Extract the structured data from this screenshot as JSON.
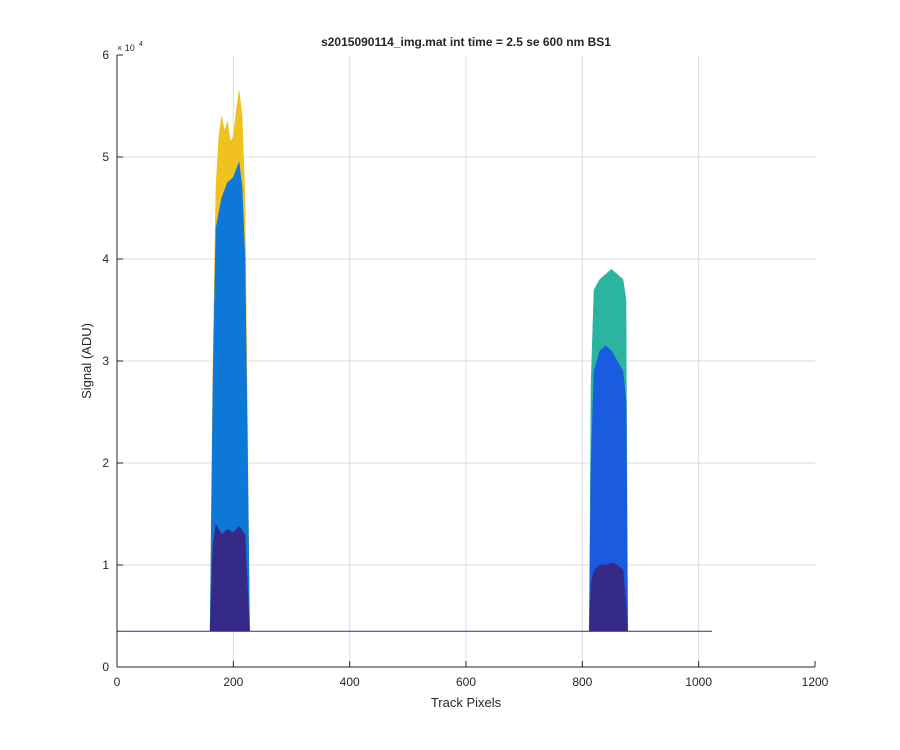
{
  "chart_data": {
    "type": "area",
    "title": "s2015090114_img.mat int time = 2.5 se  600 nm BS1",
    "xlabel": "Track Pixels",
    "ylabel": "Signal (ADU)",
    "xlim": [
      0,
      1200
    ],
    "ylim": [
      0,
      60000
    ],
    "xticks": [
      0,
      200,
      400,
      600,
      800,
      1000,
      1200
    ],
    "xtick_labels": [
      "0",
      "200",
      "400",
      "600",
      "800",
      "1000",
      "1200"
    ],
    "yticks": [
      0,
      10000,
      20000,
      30000,
      40000,
      50000,
      60000
    ],
    "ytick_labels": [
      "0",
      "1",
      "2",
      "3",
      "4",
      "5",
      "6"
    ],
    "y_exponent_label": "× 10",
    "y_exponent_power": "4",
    "grid": true,
    "baseline": 3500,
    "baseline_x_range": [
      0,
      1023
    ],
    "series": [
      {
        "color": "#F0C21E",
        "values": [
          [
            160,
            3500
          ],
          [
            165,
            30000
          ],
          [
            170,
            47000
          ],
          [
            175,
            52000
          ],
          [
            180,
            54000
          ],
          [
            185,
            52500
          ],
          [
            190,
            53500
          ],
          [
            195,
            51500
          ],
          [
            200,
            52000
          ],
          [
            205,
            54500
          ],
          [
            210,
            56500
          ],
          [
            215,
            54000
          ],
          [
            220,
            46000
          ],
          [
            225,
            20000
          ],
          [
            228,
            3500
          ]
        ]
      },
      {
        "color": "#2BB4A0",
        "values": [
          [
            812,
            3500
          ],
          [
            815,
            28000
          ],
          [
            820,
            37000
          ],
          [
            830,
            38000
          ],
          [
            840,
            38500
          ],
          [
            850,
            39000
          ],
          [
            860,
            38500
          ],
          [
            870,
            38000
          ],
          [
            875,
            36000
          ],
          [
            878,
            3500
          ]
        ]
      },
      {
        "color": "#0E78D8",
        "values": [
          [
            160,
            3500
          ],
          [
            165,
            28000
          ],
          [
            170,
            43000
          ],
          [
            180,
            46000
          ],
          [
            190,
            47500
          ],
          [
            200,
            48000
          ],
          [
            210,
            49500
          ],
          [
            215,
            47000
          ],
          [
            220,
            40000
          ],
          [
            225,
            18000
          ],
          [
            228,
            3500
          ]
        ]
      },
      {
        "color": "#1A5BE0",
        "values": [
          [
            812,
            3500
          ],
          [
            815,
            20000
          ],
          [
            820,
            29000
          ],
          [
            830,
            31000
          ],
          [
            840,
            31500
          ],
          [
            850,
            31000
          ],
          [
            860,
            30000
          ],
          [
            870,
            29000
          ],
          [
            875,
            26000
          ],
          [
            878,
            3500
          ]
        ]
      },
      {
        "color": "#352A87",
        "values": [
          [
            160,
            3500
          ],
          [
            165,
            12000
          ],
          [
            170,
            14000
          ],
          [
            180,
            13000
          ],
          [
            190,
            13500
          ],
          [
            200,
            13200
          ],
          [
            210,
            13800
          ],
          [
            220,
            13000
          ],
          [
            225,
            7000
          ],
          [
            228,
            3500
          ]
        ]
      },
      {
        "color": "#352A87",
        "values": [
          [
            812,
            3500
          ],
          [
            815,
            8000
          ],
          [
            820,
            9500
          ],
          [
            830,
            10000
          ],
          [
            840,
            10000
          ],
          [
            850,
            10200
          ],
          [
            860,
            10000
          ],
          [
            870,
            9500
          ],
          [
            875,
            6000
          ],
          [
            878,
            3500
          ]
        ]
      }
    ]
  }
}
